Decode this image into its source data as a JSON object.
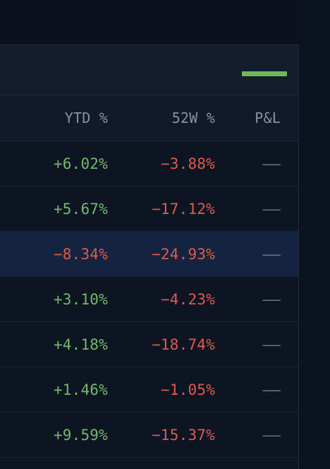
{
  "columns": {
    "ytd": "YTD %",
    "w52": "52W %",
    "pl": "P&L"
  },
  "colors": {
    "accent": "#6fb85a",
    "positive": "#72b96a",
    "negative": "#dd5a4c",
    "selected_row": "#142440"
  },
  "rows": [
    {
      "ytd": "+6.02%",
      "w52": "−3.88%",
      "pl": "——",
      "ytd_sign": "pos",
      "w52_sign": "neg"
    },
    {
      "ytd": "+5.67%",
      "w52": "−17.12%",
      "pl": "——",
      "ytd_sign": "pos",
      "w52_sign": "neg"
    },
    {
      "ytd": "−8.34%",
      "w52": "−24.93%",
      "pl": "——",
      "ytd_sign": "neg",
      "w52_sign": "neg",
      "selected": true
    },
    {
      "ytd": "+3.10%",
      "w52": "−4.23%",
      "pl": "——",
      "ytd_sign": "pos",
      "w52_sign": "neg"
    },
    {
      "ytd": "+4.18%",
      "w52": "−18.74%",
      "pl": "——",
      "ytd_sign": "pos",
      "w52_sign": "neg"
    },
    {
      "ytd": "+1.46%",
      "w52": "−1.05%",
      "pl": "——",
      "ytd_sign": "pos",
      "w52_sign": "neg"
    },
    {
      "ytd": "+9.59%",
      "w52": "−15.37%",
      "pl": "——",
      "ytd_sign": "pos",
      "w52_sign": "neg"
    }
  ]
}
